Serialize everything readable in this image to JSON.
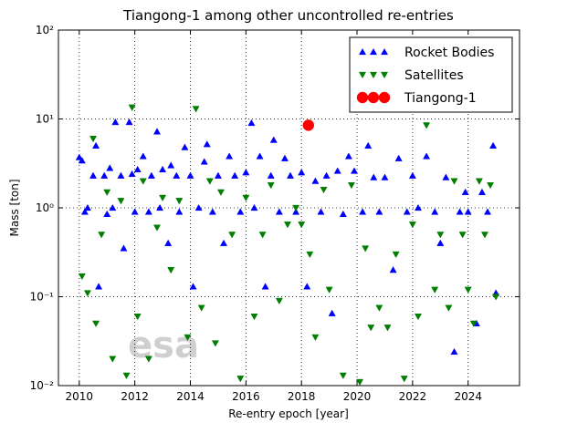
{
  "chart_data": {
    "type": "scatter",
    "title": "Tiangong-1 among other uncontrolled re-entries",
    "x_label": "Re-entry epoch [year]",
    "y_label": "Mass [ton]",
    "watermark": "esa",
    "log_y": true,
    "grid": true,
    "legend": "upper right",
    "xlim": [
      2009.25,
      2025.85
    ],
    "ylim": [
      0.01,
      100
    ],
    "xticks": [
      2010,
      2012,
      2014,
      2016,
      2018,
      2020,
      2022,
      2024
    ],
    "yticks": [
      {
        "value": 0.01,
        "label": "10⁻²"
      },
      {
        "value": 0.1,
        "label": "10⁻¹"
      },
      {
        "value": 1,
        "label": "10⁰"
      },
      {
        "value": 10,
        "label": "10¹"
      },
      {
        "value": 100,
        "label": "10²"
      }
    ],
    "series": [
      {
        "name": "Rocket Bodies",
        "color": "#0000ff",
        "marker": "^",
        "x": [
          2010.0,
          2010.1,
          2010.2,
          2010.3,
          2010.5,
          2010.6,
          2010.7,
          2010.9,
          2011.0,
          2011.1,
          2011.2,
          2011.3,
          2011.5,
          2011.6,
          2011.8,
          2011.9,
          2012.0,
          2012.1,
          2012.3,
          2012.5,
          2012.6,
          2012.8,
          2012.9,
          2013.0,
          2013.2,
          2013.3,
          2013.5,
          2013.6,
          2013.8,
          2014.0,
          2014.1,
          2014.3,
          2014.5,
          2014.6,
          2014.8,
          2015.0,
          2015.2,
          2015.4,
          2015.6,
          2015.8,
          2016.0,
          2016.2,
          2016.3,
          2016.5,
          2016.7,
          2016.9,
          2017.0,
          2017.2,
          2017.4,
          2017.6,
          2017.8,
          2018.0,
          2018.2,
          2018.5,
          2018.7,
          2018.9,
          2019.1,
          2019.3,
          2019.5,
          2019.7,
          2019.9,
          2020.2,
          2020.4,
          2020.6,
          2020.8,
          2021.0,
          2021.3,
          2021.5,
          2021.8,
          2022.0,
          2022.2,
          2022.5,
          2022.8,
          2023.0,
          2023.2,
          2023.5,
          2023.7,
          2023.9,
          2024.0,
          2024.3,
          2024.5,
          2024.7,
          2024.9,
          2025.0
        ],
        "y": [
          3.7,
          3.4,
          0.9,
          1.0,
          2.3,
          5.0,
          0.13,
          2.3,
          0.85,
          2.8,
          1.0,
          9.2,
          2.3,
          0.35,
          9.2,
          2.4,
          0.9,
          2.7,
          3.8,
          0.9,
          2.3,
          7.2,
          1.0,
          2.7,
          0.4,
          3.0,
          2.3,
          0.9,
          4.8,
          2.3,
          0.13,
          1.0,
          3.3,
          5.2,
          0.9,
          2.3,
          0.4,
          3.8,
          2.3,
          0.9,
          2.5,
          9.0,
          1.0,
          3.8,
          0.13,
          2.3,
          5.8,
          0.9,
          3.6,
          2.3,
          0.9,
          2.5,
          0.13,
          2.0,
          0.9,
          2.3,
          0.065,
          2.6,
          0.85,
          3.8,
          2.6,
          0.9,
          5.0,
          2.2,
          0.9,
          2.2,
          0.2,
          3.6,
          0.9,
          2.3,
          1.0,
          3.8,
          0.9,
          0.4,
          2.2,
          0.024,
          0.9,
          1.5,
          0.9,
          0.05,
          1.5,
          0.9,
          5.0,
          0.11
        ]
      },
      {
        "name": "Satellites",
        "color": "#007f00",
        "marker": "v",
        "x": [
          2010.1,
          2010.3,
          2010.5,
          2010.6,
          2010.8,
          2011.0,
          2011.2,
          2011.5,
          2011.7,
          2011.9,
          2012.1,
          2012.3,
          2012.5,
          2012.8,
          2013.0,
          2013.3,
          2013.6,
          2013.9,
          2014.2,
          2014.4,
          2014.7,
          2014.9,
          2015.1,
          2015.5,
          2015.8,
          2016.0,
          2016.3,
          2016.6,
          2016.9,
          2017.2,
          2017.5,
          2017.8,
          2018.0,
          2018.3,
          2018.5,
          2018.8,
          2019.0,
          2019.5,
          2019.8,
          2020.1,
          2020.3,
          2020.5,
          2020.8,
          2021.1,
          2021.4,
          2021.7,
          2022.0,
          2022.2,
          2022.5,
          2022.8,
          2023.0,
          2023.3,
          2023.5,
          2023.8,
          2024.0,
          2024.2,
          2024.4,
          2024.6,
          2024.8,
          2025.0
        ],
        "y": [
          0.17,
          0.11,
          6.0,
          0.05,
          0.5,
          1.5,
          0.02,
          1.2,
          0.013,
          13.5,
          0.06,
          2.0,
          0.02,
          0.6,
          1.3,
          0.2,
          1.2,
          0.035,
          13.0,
          0.075,
          2.0,
          0.03,
          1.5,
          0.5,
          0.012,
          1.3,
          0.06,
          0.5,
          1.8,
          0.09,
          0.65,
          1.0,
          0.65,
          0.3,
          0.035,
          1.6,
          0.12,
          0.013,
          1.8,
          0.011,
          0.35,
          0.045,
          0.075,
          0.045,
          0.3,
          0.012,
          0.65,
          0.06,
          8.5,
          0.12,
          0.5,
          0.075,
          2.0,
          0.5,
          0.12,
          0.05,
          2.0,
          0.5,
          1.8,
          0.1
        ]
      },
      {
        "name": "Tiangong-1",
        "color": "#ff0000",
        "marker": "o",
        "x": [
          2018.25
        ],
        "y": [
          8.5
        ]
      }
    ]
  }
}
